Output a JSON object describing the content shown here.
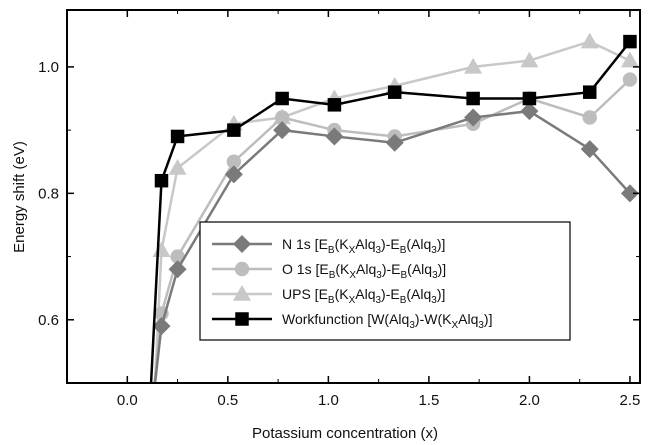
{
  "chart_data": {
    "type": "line",
    "xlabel": "Potassium concentration (x)",
    "ylabel": "Energy shift (eV)",
    "xlim": [
      -0.3,
      2.55
    ],
    "ylim": [
      0.5,
      1.09
    ],
    "xticks": [
      0.0,
      0.5,
      1.0,
      1.5,
      2.0,
      2.5
    ],
    "xtick_labels": [
      "0.0",
      "0.5",
      "1.0",
      "1.5",
      "2.0",
      "2.5"
    ],
    "yticks": [
      0.6,
      0.8,
      1.0
    ],
    "ytick_labels": [
      "0.6",
      "0.8",
      "1.0"
    ],
    "grid": false,
    "legend_position": "lower-right",
    "series": [
      {
        "name": "N 1s",
        "legend_main": "N 1s [E",
        "legend_parts": [
          [
            "N 1s [E",
            ""
          ],
          [
            "B",
            "sub"
          ],
          [
            "(K",
            ""
          ],
          [
            "X",
            "sub"
          ],
          [
            "Alq",
            ""
          ],
          [
            "3",
            "sub"
          ],
          [
            ")-E",
            ""
          ],
          [
            "B",
            "sub"
          ],
          [
            "(Alq",
            ""
          ],
          [
            "3",
            "sub"
          ],
          [
            ")]",
            ""
          ]
        ],
        "color": "#7a7a7a",
        "marker": "diamond",
        "x": [
          0.12,
          0.17,
          0.25,
          0.53,
          0.77,
          1.03,
          1.33,
          1.72,
          2.0,
          2.3,
          2.5
        ],
        "y": [
          0.45,
          0.59,
          0.68,
          0.83,
          0.9,
          0.89,
          0.88,
          0.92,
          0.93,
          0.87,
          0.8
        ]
      },
      {
        "name": "O 1s",
        "legend_parts": [
          [
            "O 1s [E",
            ""
          ],
          [
            "B",
            "sub"
          ],
          [
            "(K",
            ""
          ],
          [
            "X",
            "sub"
          ],
          [
            "Alq",
            ""
          ],
          [
            "3",
            "sub"
          ],
          [
            ")-E",
            ""
          ],
          [
            "B",
            "sub"
          ],
          [
            "(Alq",
            ""
          ],
          [
            "3",
            "sub"
          ],
          [
            ")]",
            ""
          ]
        ],
        "color": "#bdbdbd",
        "marker": "circle",
        "x": [
          0.12,
          0.17,
          0.25,
          0.53,
          0.77,
          1.03,
          1.33,
          1.72,
          2.0,
          2.3,
          2.5
        ],
        "y": [
          0.45,
          0.61,
          0.7,
          0.85,
          0.92,
          0.9,
          0.89,
          0.91,
          0.95,
          0.92,
          0.98
        ]
      },
      {
        "name": "UPS",
        "legend_parts": [
          [
            "UPS [E",
            ""
          ],
          [
            "B",
            "sub"
          ],
          [
            "(K",
            ""
          ],
          [
            "X",
            "sub"
          ],
          [
            "Alq",
            ""
          ],
          [
            "3",
            "sub"
          ],
          [
            ")-E",
            ""
          ],
          [
            "B",
            "sub"
          ],
          [
            "(Alq",
            ""
          ],
          [
            "3",
            "sub"
          ],
          [
            ")]",
            ""
          ]
        ],
        "color": "#c8c8c8",
        "marker": "triangle",
        "x": [
          0.13,
          0.17,
          0.25,
          0.53,
          0.77,
          1.03,
          1.33,
          1.72,
          2.0,
          2.3,
          2.5
        ],
        "y": [
          0.45,
          0.71,
          0.84,
          0.91,
          0.92,
          0.95,
          0.97,
          1.0,
          1.01,
          1.04,
          1.01
        ]
      },
      {
        "name": "Workfunction",
        "legend_parts": [
          [
            "Workfunction [W(Alq",
            ""
          ],
          [
            "3",
            "sub"
          ],
          [
            ")-W(K",
            ""
          ],
          [
            "X",
            "sub"
          ],
          [
            "Alq",
            ""
          ],
          [
            "3",
            "sub"
          ],
          [
            ")]",
            ""
          ]
        ],
        "color": "#000000",
        "marker": "square",
        "x": [
          0.11,
          0.17,
          0.25,
          0.53,
          0.77,
          1.03,
          1.33,
          1.72,
          2.0,
          2.3,
          2.5
        ],
        "y": [
          0.45,
          0.82,
          0.89,
          0.9,
          0.95,
          0.94,
          0.96,
          0.95,
          0.95,
          0.96,
          1.04
        ]
      }
    ]
  }
}
